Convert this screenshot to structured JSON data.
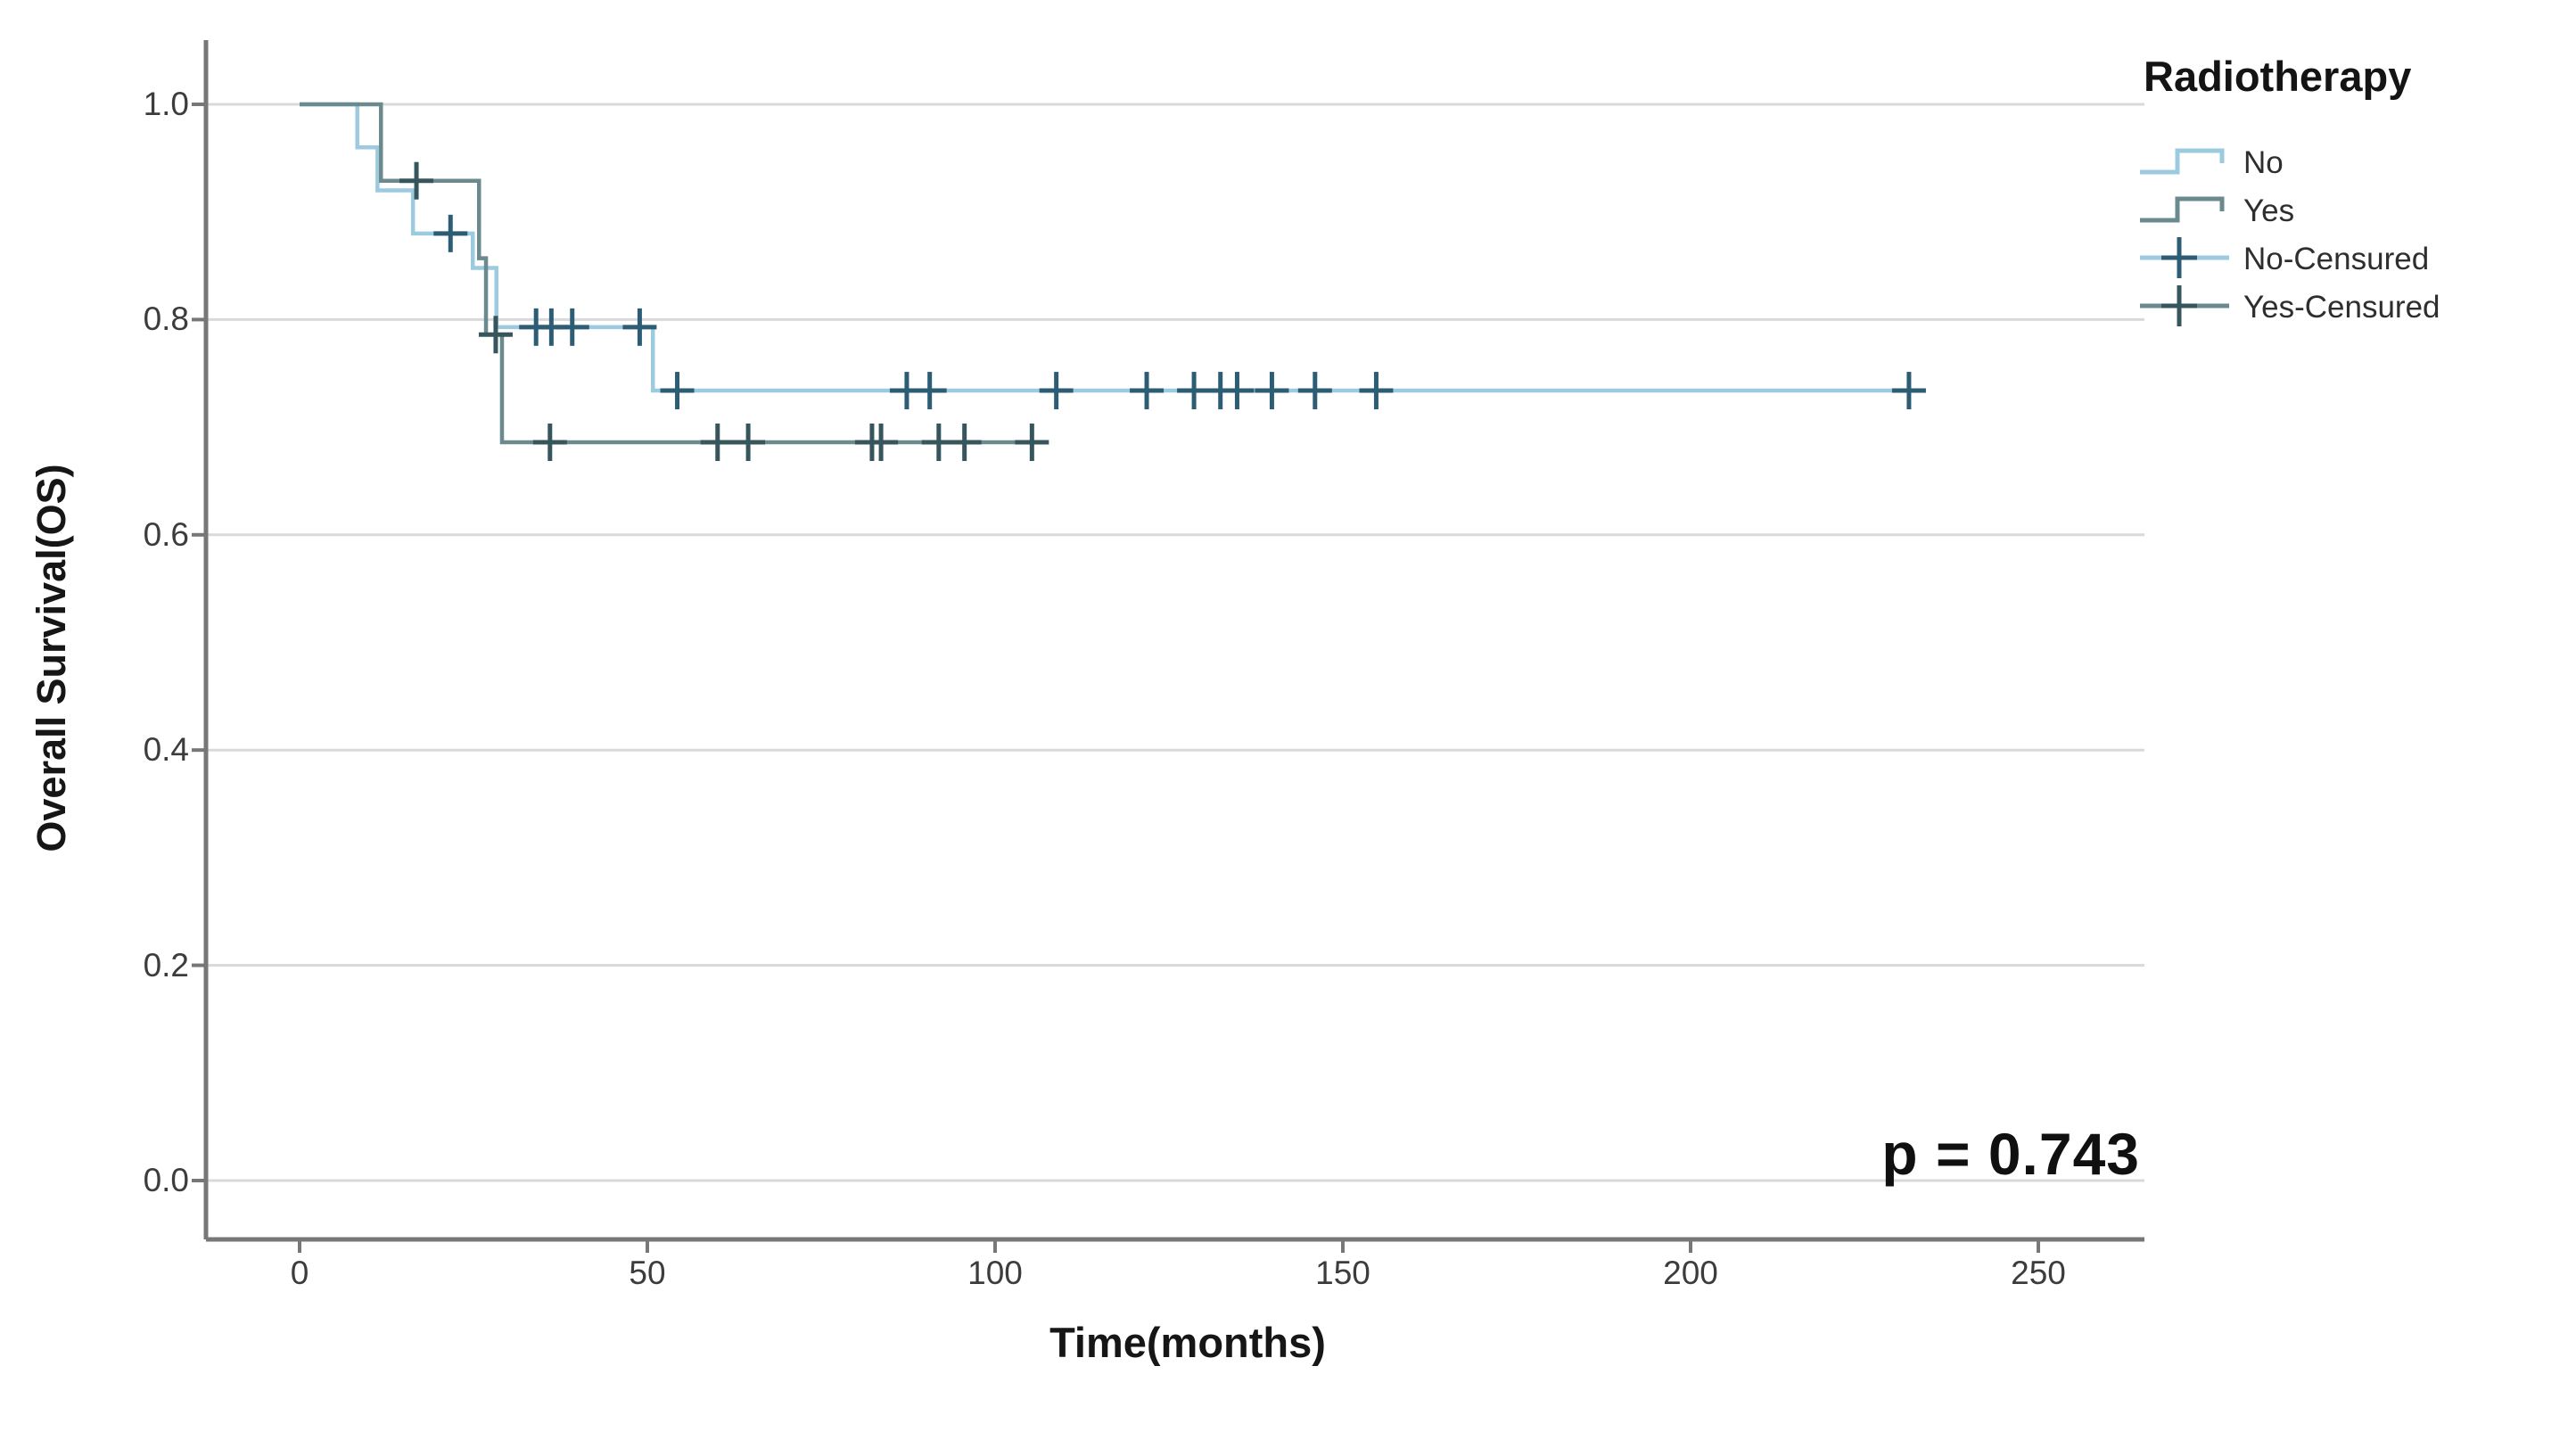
{
  "figure": {
    "background": "#ffffff"
  },
  "chart_data": {
    "type": "line",
    "subtype": "kaplan-meier-step-plot",
    "title": "",
    "xlabel": "Time(months)",
    "ylabel": "Overall Survival(OS)",
    "annotation": "p = 0.743",
    "grid": "horizontal",
    "xlim": [
      -13.5,
      265
    ],
    "ylim": [
      -0.055,
      1.06
    ],
    "x_ticks": [
      0,
      50,
      100,
      150,
      200,
      250
    ],
    "x_tick_labels": [
      "0",
      "50",
      "100",
      "150",
      "200",
      "250"
    ],
    "y_ticks": [
      1.0,
      0.8,
      0.6,
      0.4,
      0.2,
      0.0
    ],
    "y_tick_labels": [
      "1.0",
      "0.8",
      "0.6",
      "0.4",
      "0.2",
      "0.0"
    ],
    "axis_color": "#777777",
    "grid_color": "#d9d9d9",
    "tick_label_color": "#3c3c3c",
    "legend": {
      "title": "Radiotherapy",
      "position": "top-right",
      "items": [
        {
          "label": "No",
          "type": "step-line",
          "color": "#9ccadf"
        },
        {
          "label": "Yes",
          "type": "step-line",
          "color": "#6b8a8d"
        },
        {
          "label": "No-Censured",
          "type": "censor-mark",
          "line_color": "#9ccadf",
          "cross_color": "#2d5d74"
        },
        {
          "label": "Yes-Censured",
          "type": "censor-mark",
          "line_color": "#6b8a8d",
          "cross_color": "#36555c"
        }
      ]
    },
    "series": [
      {
        "name": "No",
        "color": "#9ccadf",
        "censor_color": "#2d5d74",
        "start": [
          0,
          1.0
        ],
        "steps": [
          [
            8.3,
            0.96
          ],
          [
            11.2,
            0.92
          ],
          [
            16.3,
            0.88
          ],
          [
            24.9,
            0.848
          ],
          [
            28.3,
            0.793
          ],
          [
            50.8,
            0.734
          ]
        ],
        "end_time": 232,
        "censors": [
          [
            21.7,
            0.88
          ],
          [
            34.0,
            0.793
          ],
          [
            36.2,
            0.793
          ],
          [
            39.2,
            0.793
          ],
          [
            48.9,
            0.793
          ],
          [
            54.3,
            0.734
          ],
          [
            87.3,
            0.734
          ],
          [
            90.6,
            0.734
          ],
          [
            108.8,
            0.734
          ],
          [
            121.8,
            0.734
          ],
          [
            128.6,
            0.734
          ],
          [
            132.4,
            0.734
          ],
          [
            134.8,
            0.734
          ],
          [
            139.8,
            0.734
          ],
          [
            146.0,
            0.734
          ],
          [
            154.8,
            0.734
          ],
          [
            231.4,
            0.734
          ]
        ]
      },
      {
        "name": "Yes",
        "color": "#6b8a8d",
        "censor_color": "#36555c",
        "start": [
          0,
          1.0
        ],
        "steps": [
          [
            11.7,
            0.929
          ],
          [
            25.8,
            0.857
          ],
          [
            26.8,
            0.786
          ],
          [
            29.1,
            0.686
          ]
        ],
        "end_time": 107.5,
        "censors": [
          [
            16.8,
            0.929
          ],
          [
            28.2,
            0.786
          ],
          [
            36.0,
            0.686
          ],
          [
            60.1,
            0.686
          ],
          [
            64.5,
            0.686
          ],
          [
            82.3,
            0.686
          ],
          [
            83.6,
            0.686
          ],
          [
            91.9,
            0.686
          ],
          [
            95.6,
            0.686
          ],
          [
            105.3,
            0.686
          ]
        ]
      }
    ]
  }
}
